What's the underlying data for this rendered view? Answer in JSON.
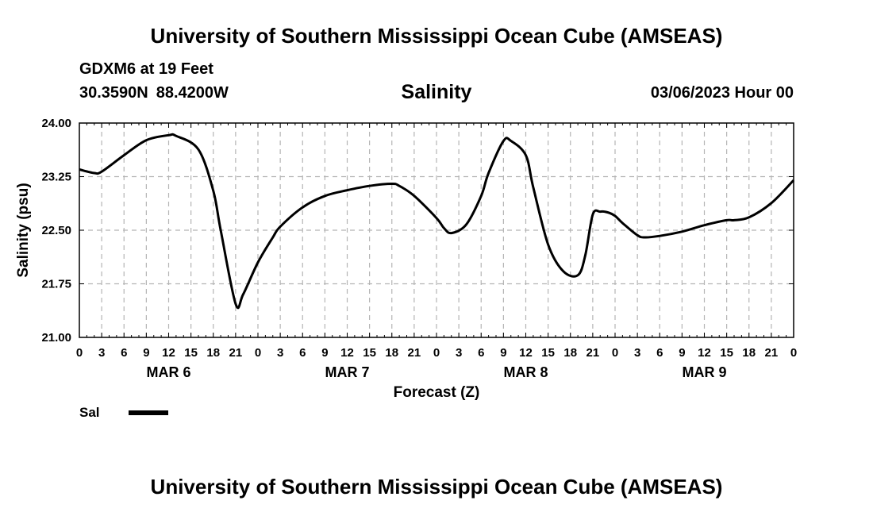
{
  "header": {
    "title": "University of Southern Mississippi Ocean Cube (AMSEAS)",
    "station": "GDXM6 at 19 Feet",
    "lat": "30.3590N",
    "lon": "88.4200W",
    "datetime": "03/06/2023 Hour 00"
  },
  "footer": {
    "title": "University of Southern Mississippi Ocean Cube (AMSEAS)"
  },
  "legend": {
    "label": "Sal"
  },
  "colors": {
    "line": "#000000",
    "grid": "#b4b4b4"
  },
  "chart_data": {
    "type": "line",
    "title": "Salinity",
    "xlabel": "Forecast (Z)",
    "ylabel": "Salinity (psu)",
    "ylim": [
      21.0,
      24.0
    ],
    "yticks": [
      "21.00",
      "21.75",
      "22.50",
      "23.25",
      "24.00"
    ],
    "xlim": [
      0,
      96
    ],
    "xtick_labels": [
      "0",
      "3",
      "6",
      "9",
      "12",
      "15",
      "18",
      "21",
      "0",
      "3",
      "6",
      "9",
      "12",
      "15",
      "18",
      "21",
      "0",
      "3",
      "6",
      "9",
      "12",
      "15",
      "18",
      "21",
      "0",
      "3",
      "6",
      "9",
      "12",
      "15",
      "18",
      "21",
      "0"
    ],
    "day_labels": [
      "MAR 6",
      "MAR 7",
      "MAR 8",
      "MAR 9"
    ],
    "grid": true,
    "series": [
      {
        "name": "Sal",
        "x": [
          0,
          2,
          3,
          6,
          9,
          12,
          13,
          16,
          18,
          19,
          21,
          22,
          24,
          26,
          27,
          30,
          33,
          36,
          39,
          42,
          43,
          45,
          48,
          49,
          50,
          52,
          54,
          55,
          57,
          58,
          60,
          61,
          63,
          65,
          67,
          68,
          69,
          70,
          71,
          72,
          73,
          75,
          76,
          78,
          81,
          84,
          87,
          88,
          90,
          93,
          96
        ],
        "values": [
          23.35,
          23.3,
          23.32,
          23.55,
          23.76,
          23.83,
          23.82,
          23.63,
          23.05,
          22.5,
          21.47,
          21.6,
          22.05,
          22.4,
          22.55,
          22.82,
          22.98,
          23.06,
          23.12,
          23.15,
          23.12,
          22.98,
          22.67,
          22.53,
          22.46,
          22.58,
          22.98,
          23.3,
          23.75,
          23.75,
          23.55,
          23.1,
          22.3,
          21.93,
          21.87,
          22.15,
          22.72,
          22.76,
          22.75,
          22.7,
          22.6,
          22.43,
          22.4,
          22.42,
          22.48,
          22.57,
          22.64,
          22.64,
          22.68,
          22.88,
          23.2
        ]
      }
    ]
  }
}
